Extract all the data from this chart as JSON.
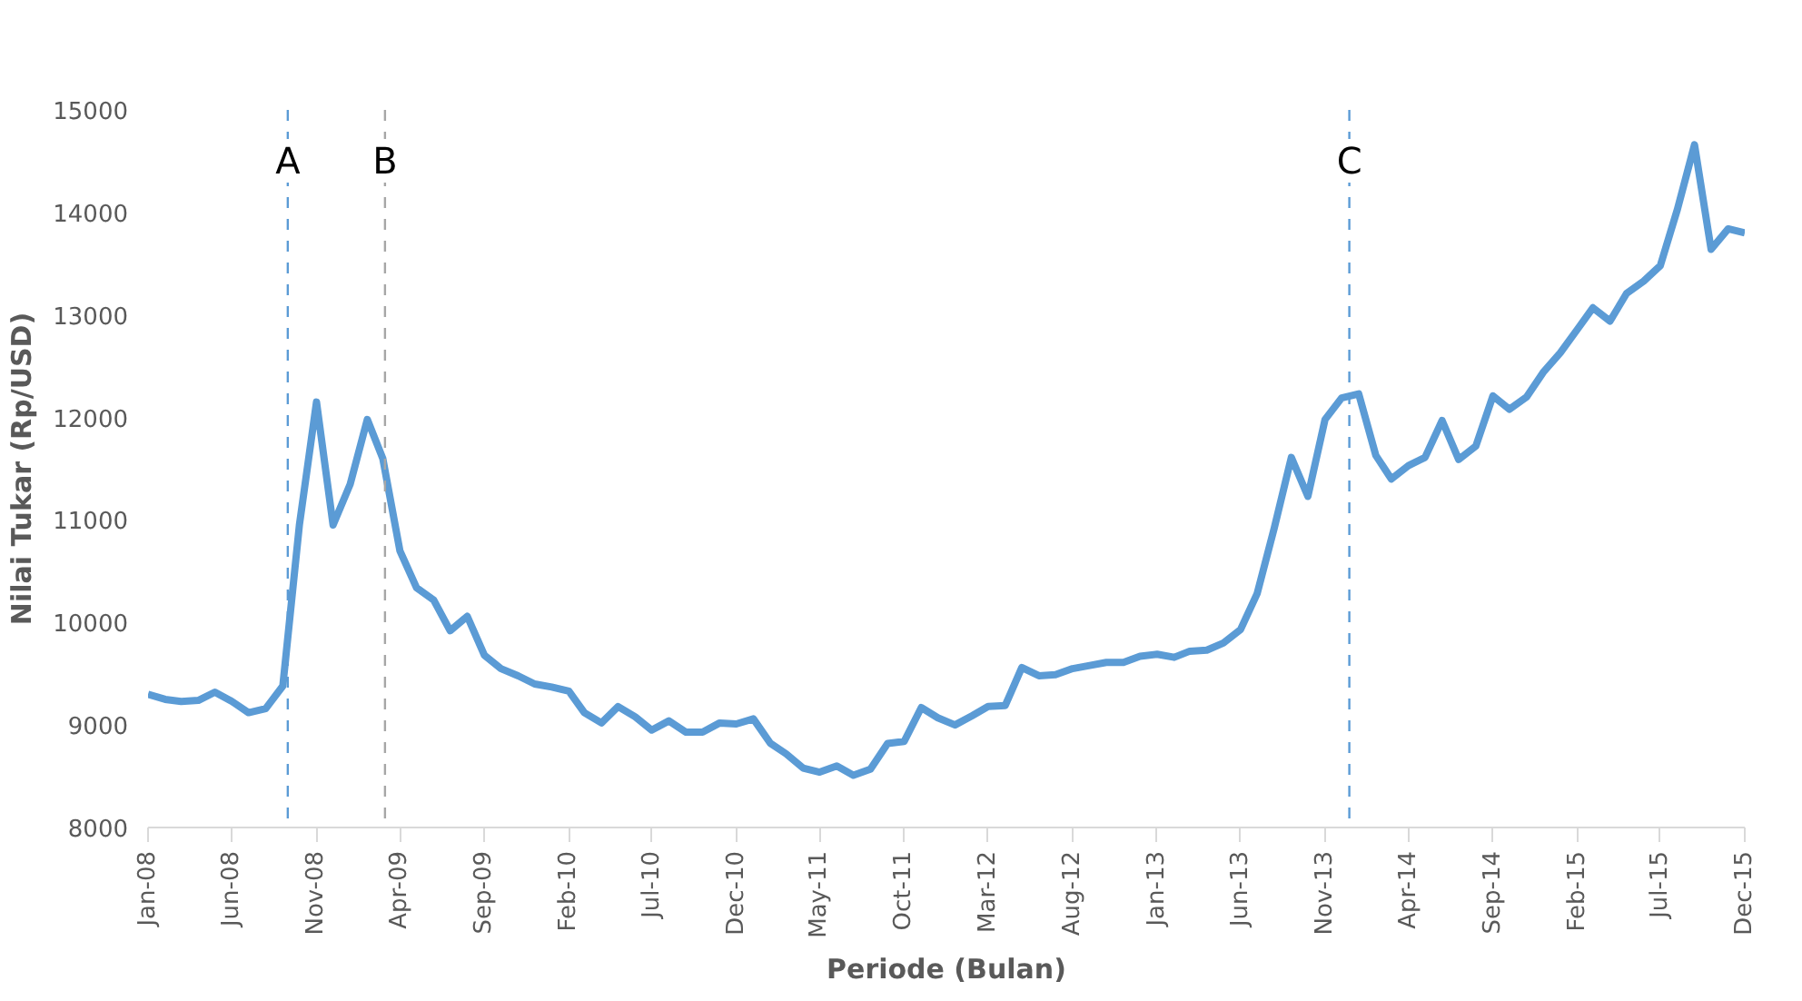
{
  "chart_data": {
    "type": "line",
    "xlabel": "Periode (Bulan)",
    "ylabel": "Nilai Tukar (Rp/USD)",
    "x": [
      "2008-01",
      "2008-02",
      "2008-03",
      "2008-04",
      "2008-05",
      "2008-06",
      "2008-07",
      "2008-08",
      "2008-09",
      "2008-10",
      "2008-11",
      "2008-12",
      "2009-01",
      "2009-02",
      "2009-03",
      "2009-04",
      "2009-05",
      "2009-06",
      "2009-07",
      "2009-08",
      "2009-09",
      "2009-10",
      "2009-11",
      "2009-12",
      "2010-01",
      "2010-02",
      "2010-03",
      "2010-04",
      "2010-05",
      "2010-06",
      "2010-07",
      "2010-08",
      "2010-09",
      "2010-10",
      "2010-11",
      "2010-12",
      "2011-01",
      "2011-02",
      "2011-03",
      "2011-04",
      "2011-05",
      "2011-06",
      "2011-07",
      "2011-08",
      "2011-09",
      "2011-10",
      "2011-11",
      "2011-12",
      "2012-01",
      "2012-02",
      "2012-03",
      "2012-04",
      "2012-05",
      "2012-06",
      "2012-07",
      "2012-08",
      "2012-09",
      "2012-10",
      "2012-11",
      "2012-12",
      "2013-01",
      "2013-02",
      "2013-03",
      "2013-04",
      "2013-05",
      "2013-06",
      "2013-07",
      "2013-08",
      "2013-09",
      "2013-10",
      "2013-11",
      "2013-12",
      "2014-01",
      "2014-02",
      "2014-03",
      "2014-04",
      "2014-05",
      "2014-06",
      "2014-07",
      "2014-08",
      "2014-09",
      "2014-10",
      "2014-11",
      "2014-12",
      "2015-01",
      "2015-02",
      "2015-03",
      "2015-04",
      "2015-05",
      "2015-06",
      "2015-07",
      "2015-08",
      "2015-09",
      "2015-10",
      "2015-11",
      "2015-12"
    ],
    "series": [
      {
        "color": "#5b9bd5",
        "values": [
          9300,
          9250,
          9230,
          9240,
          9320,
          9230,
          9120,
          9160,
          9380,
          10950,
          12150,
          10950,
          11350,
          11980,
          11600,
          10700,
          10340,
          10220,
          9920,
          10060,
          9680,
          9550,
          9480,
          9400,
          9370,
          9330,
          9120,
          9020,
          9180,
          9080,
          8950,
          9040,
          8930,
          8930,
          9020,
          9010,
          9060,
          8820,
          8720,
          8580,
          8540,
          8600,
          8510,
          8570,
          8820,
          8840,
          9170,
          9070,
          9000,
          9090,
          9180,
          9190,
          9560,
          9480,
          9490,
          9550,
          9580,
          9610,
          9610,
          9670,
          9690,
          9660,
          9720,
          9730,
          9800,
          9930,
          10280,
          10920,
          11610,
          11230,
          11980,
          12190,
          12230,
          11630,
          11400,
          11530,
          11610,
          11970,
          11590,
          11720,
          12210,
          12080,
          12200,
          12440,
          12630,
          12860,
          13070,
          12940,
          13210,
          13330,
          13480,
          14030,
          14660,
          13640,
          13840,
          13800
        ]
      }
    ],
    "xlim": [
      "2008-01",
      "2015-12"
    ],
    "xticks": [
      {
        "value": "2008-01",
        "label": "Jan-08"
      },
      {
        "value": "2008-06",
        "label": "Jun-08"
      },
      {
        "value": "2008-11",
        "label": "Nov-08"
      },
      {
        "value": "2009-04",
        "label": "Apr-09"
      },
      {
        "value": "2009-09",
        "label": "Sep-09"
      },
      {
        "value": "2010-02",
        "label": "Feb-10"
      },
      {
        "value": "2010-07",
        "label": "Jul-10"
      },
      {
        "value": "2010-12",
        "label": "Dec-10"
      },
      {
        "value": "2011-05",
        "label": "May-11"
      },
      {
        "value": "2011-10",
        "label": "Oct-11"
      },
      {
        "value": "2012-03",
        "label": "Mar-12"
      },
      {
        "value": "2012-08",
        "label": "Aug-12"
      },
      {
        "value": "2013-01",
        "label": "Jan-13"
      },
      {
        "value": "2013-06",
        "label": "Jun-13"
      },
      {
        "value": "2013-11",
        "label": "Nov-13"
      },
      {
        "value": "2014-04",
        "label": "Apr-14"
      },
      {
        "value": "2014-09",
        "label": "Sep-14"
      },
      {
        "value": "2015-02",
        "label": "Feb-15"
      },
      {
        "value": "2015-07",
        "label": "Jul-15"
      },
      {
        "value": "2015-12",
        "label": "Dec-15"
      }
    ],
    "ylim": [
      8000,
      15000
    ],
    "yticks": [
      8000,
      9000,
      10000,
      11000,
      12000,
      13000,
      14000,
      15000
    ],
    "ref_lines": [
      {
        "axis": "x",
        "value": "2008-09-10",
        "label": "A",
        "color": "#5b9bd5",
        "line_style": "dashed"
      },
      {
        "axis": "x",
        "value": "2009-03-05",
        "label": "B",
        "color": "#a6a6a6",
        "line_style": "dashed"
      },
      {
        "axis": "x",
        "value": "2013-12-15",
        "label": "C",
        "color": "#5b9bd5",
        "line_style": "dashed"
      }
    ],
    "grid": false,
    "marker": "none",
    "line_style": "solid"
  }
}
